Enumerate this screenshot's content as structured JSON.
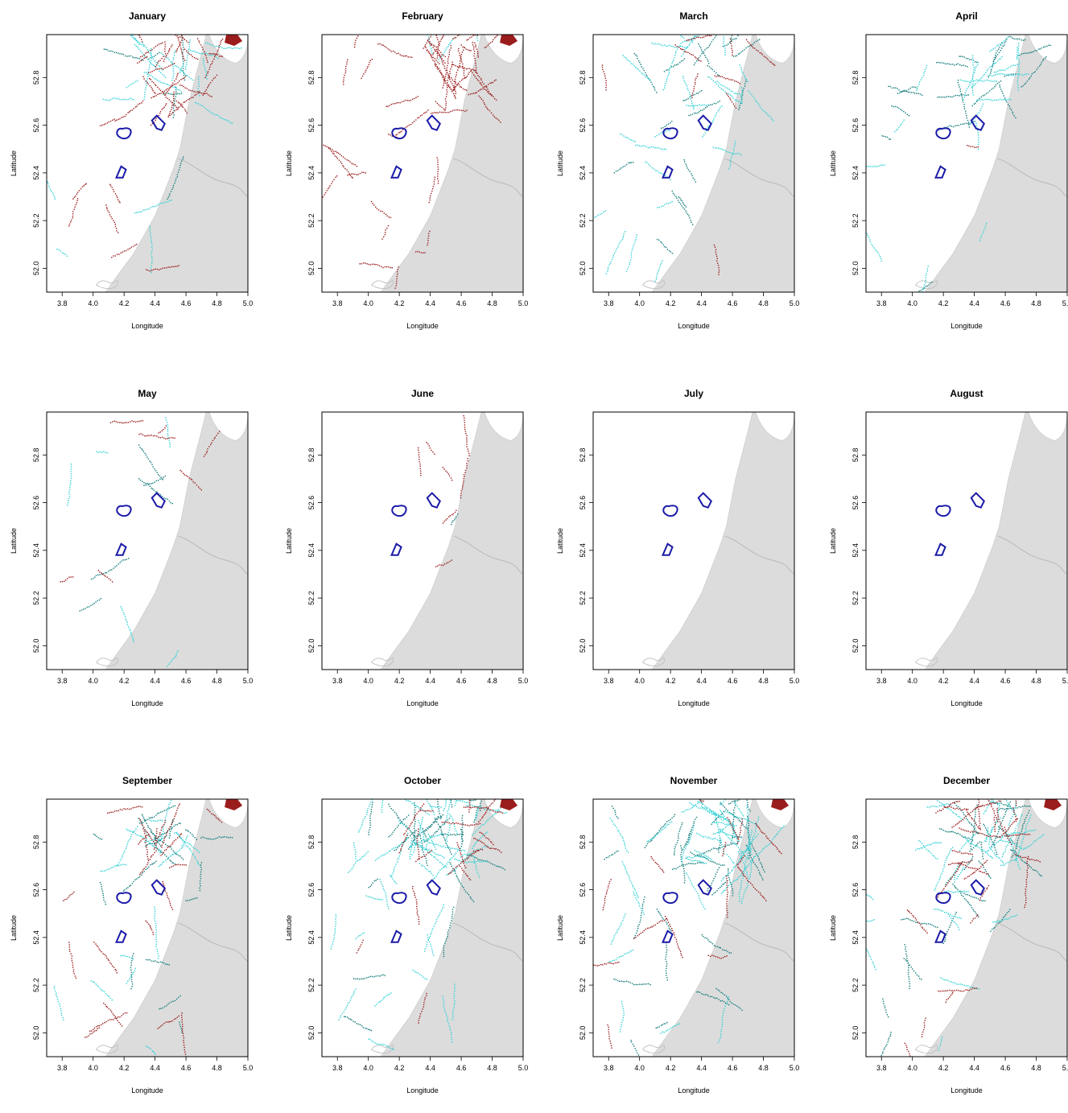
{
  "figure": {
    "xlabel": "Longitude",
    "ylabel": "Latitude",
    "x_ticks": [
      "3.8",
      "4.0",
      "4.2",
      "4.4",
      "4.6",
      "4.8",
      "5.0"
    ],
    "y_ticks": [
      "52.0",
      "52.2",
      "52.4",
      "52.6",
      "52.8"
    ],
    "colors": {
      "land": "#dcdcdc",
      "site_outline": "#1a1aa8",
      "track_dark_red": "#9b1c1c",
      "track_cyan": "#33d1d6",
      "track_teal": "#127b7b",
      "frame": "#000000"
    }
  },
  "chart_data": [
    {
      "type": "map",
      "title": "January",
      "xlim": [
        3.7,
        5.0
      ],
      "ylim": [
        51.9,
        52.98
      ],
      "activity": {
        "dark_red": 0.55,
        "cyan": 0.35,
        "teal": 0.1
      }
    },
    {
      "type": "map",
      "title": "February",
      "xlim": [
        3.7,
        5.0
      ],
      "ylim": [
        51.9,
        52.98
      ],
      "activity": {
        "dark_red": 0.8,
        "cyan": 0.05,
        "teal": 0.0
      }
    },
    {
      "type": "map",
      "title": "March",
      "xlim": [
        3.7,
        5.0
      ],
      "ylim": [
        51.9,
        52.98
      ],
      "activity": {
        "dark_red": 0.15,
        "cyan": 0.45,
        "teal": 0.3
      }
    },
    {
      "type": "map",
      "title": "April",
      "xlim": [
        3.7,
        5.0
      ],
      "ylim": [
        51.9,
        52.98
      ],
      "activity": {
        "dark_red": 0.02,
        "cyan": 0.3,
        "teal": 0.3
      }
    },
    {
      "type": "map",
      "title": "May",
      "xlim": [
        3.7,
        5.0
      ],
      "ylim": [
        51.9,
        52.98
      ],
      "activity": {
        "dark_red": 0.12,
        "cyan": 0.08,
        "teal": 0.08
      }
    },
    {
      "type": "map",
      "title": "June",
      "xlim": [
        3.7,
        5.0
      ],
      "ylim": [
        51.9,
        52.98
      ],
      "activity": {
        "dark_red": 0.12,
        "cyan": 0.0,
        "teal": 0.02
      }
    },
    {
      "type": "map",
      "title": "July",
      "xlim": [
        3.7,
        5.0
      ],
      "ylim": [
        51.9,
        52.98
      ],
      "activity": {
        "dark_red": 0.0,
        "cyan": 0.0,
        "teal": 0.0
      }
    },
    {
      "type": "map",
      "title": "August",
      "xlim": [
        3.7,
        5.0
      ],
      "ylim": [
        51.9,
        52.98
      ],
      "activity": {
        "dark_red": 0.0,
        "cyan": 0.0,
        "teal": 0.0
      }
    },
    {
      "type": "map",
      "title": "September",
      "xlim": [
        3.7,
        5.0
      ],
      "ylim": [
        51.9,
        52.98
      ],
      "activity": {
        "dark_red": 0.35,
        "cyan": 0.3,
        "teal": 0.3
      }
    },
    {
      "type": "map",
      "title": "October",
      "xlim": [
        3.7,
        5.0
      ],
      "ylim": [
        51.9,
        52.98
      ],
      "activity": {
        "dark_red": 0.3,
        "cyan": 0.8,
        "teal": 0.45
      }
    },
    {
      "type": "map",
      "title": "November",
      "xlim": [
        3.7,
        5.0
      ],
      "ylim": [
        51.9,
        52.98
      ],
      "activity": {
        "dark_red": 0.25,
        "cyan": 0.7,
        "teal": 0.55
      }
    },
    {
      "type": "map",
      "title": "December",
      "xlim": [
        3.7,
        5.0
      ],
      "ylim": [
        51.9,
        52.98
      ],
      "activity": {
        "dark_red": 0.5,
        "cyan": 0.6,
        "teal": 0.4
      }
    }
  ]
}
